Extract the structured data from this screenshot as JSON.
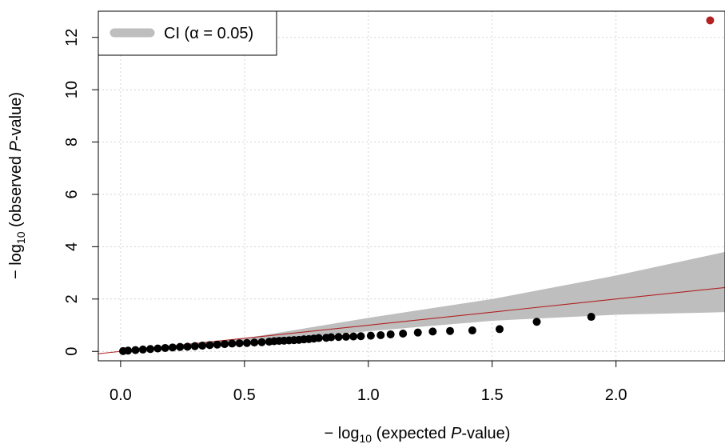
{
  "chart_data": {
    "type": "scatter",
    "xlabel": {
      "prefix": "− log",
      "sub": "10",
      "mid": " (expected ",
      "ital": "P",
      "suffix": "-value)"
    },
    "ylabel": {
      "prefix": "− log",
      "sub": "10",
      "mid": " (observed ",
      "ital": "P",
      "suffix": "-value)"
    },
    "xlim": [
      -0.09,
      2.44
    ],
    "ylim": [
      -0.36,
      13.0
    ],
    "x_ticks": [
      {
        "value": 0.0,
        "label": "0.0"
      },
      {
        "value": 0.5,
        "label": "0.5"
      },
      {
        "value": 1.0,
        "label": "1.0"
      },
      {
        "value": 1.5,
        "label": "1.5"
      },
      {
        "value": 2.0,
        "label": "2.0"
      }
    ],
    "y_ticks": [
      {
        "value": 0,
        "label": "0"
      },
      {
        "value": 2,
        "label": "2"
      },
      {
        "value": 4,
        "label": "4"
      },
      {
        "value": 6,
        "label": "6"
      },
      {
        "value": 8,
        "label": "8"
      },
      {
        "value": 10,
        "label": "10"
      },
      {
        "value": 12,
        "label": "12"
      }
    ],
    "grid": true,
    "legend": {
      "position": "top-left",
      "label": "CI (α = 0.05)",
      "color": "#bebebe"
    },
    "reference_line": {
      "slope": 1,
      "intercept": 0,
      "color": "#b22222"
    },
    "ci_band": {
      "color": "#bebebe",
      "x": [
        0.0,
        0.5,
        1.0,
        1.5,
        2.0,
        2.44
      ],
      "lower": [
        0.0,
        0.32,
        0.77,
        1.17,
        1.4,
        1.5
      ],
      "upper": [
        0.0,
        0.5,
        1.28,
        2.0,
        2.9,
        3.8
      ]
    },
    "series": [
      {
        "color": "#000000",
        "x": [
          1.9,
          1.68,
          1.53,
          1.42,
          1.33,
          1.26,
          1.2,
          1.14,
          1.09,
          1.05,
          1.01,
          0.97,
          0.94,
          0.91,
          0.88,
          0.85,
          0.83,
          0.8,
          0.78,
          0.76,
          0.74,
          0.72,
          0.7,
          0.68,
          0.66,
          0.64,
          0.62,
          0.6,
          0.57,
          0.54,
          0.51,
          0.48,
          0.45,
          0.42,
          0.39,
          0.36,
          0.33,
          0.3,
          0.27,
          0.24,
          0.21,
          0.18,
          0.15,
          0.12,
          0.09,
          0.06,
          0.03,
          0.01
        ],
        "y": [
          1.32,
          1.13,
          0.85,
          0.8,
          0.78,
          0.76,
          0.72,
          0.68,
          0.65,
          0.62,
          0.6,
          0.58,
          0.57,
          0.56,
          0.55,
          0.54,
          0.52,
          0.51,
          0.49,
          0.47,
          0.46,
          0.44,
          0.43,
          0.42,
          0.41,
          0.4,
          0.39,
          0.37,
          0.35,
          0.34,
          0.32,
          0.31,
          0.3,
          0.28,
          0.26,
          0.24,
          0.22,
          0.2,
          0.18,
          0.17,
          0.15,
          0.13,
          0.11,
          0.09,
          0.07,
          0.05,
          0.03,
          0.01
        ]
      },
      {
        "color": "#b22222",
        "x": [
          2.38
        ],
        "y": [
          12.65
        ]
      }
    ]
  }
}
